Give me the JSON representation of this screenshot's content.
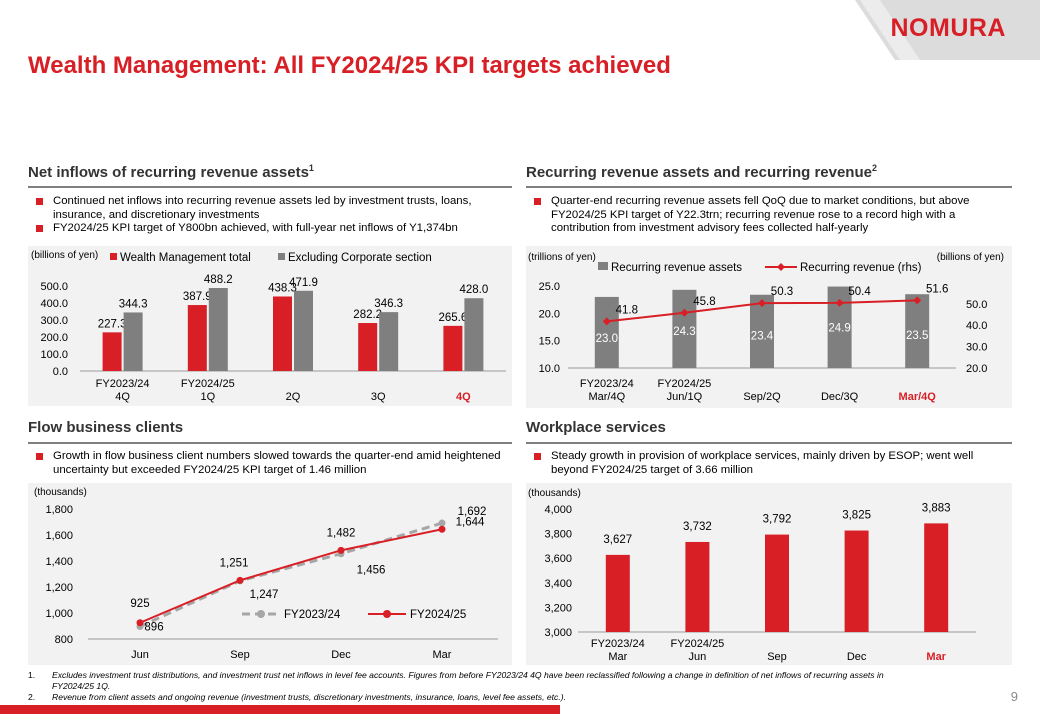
{
  "title": "Wealth Management: All FY2024/25 KPI targets achieved",
  "logo": "NOMURA",
  "page_number": "9",
  "colors": {
    "red": "#d81f26",
    "grey": "#7f7f7f",
    "panel": "#f2f2f2",
    "band": "#dcdcdc"
  },
  "sections": {
    "net_inflows": {
      "title": "Net inflows of recurring revenue assets",
      "sup": "1",
      "bullets": [
        "Continued net inflows into recurring revenue assets led by investment trusts, loans, insurance, and discretionary investments",
        "FY2024/25 KPI target of Y800bn achieved, with full-year net inflows of Y1,374bn"
      ]
    },
    "recurring": {
      "title": "Recurring revenue assets and recurring revenue",
      "sup": "2",
      "bullets": [
        "Quarter-end recurring revenue assets fell QoQ due to market conditions, but above FY2024/25 KPI target of Y22.3trn; recurring revenue rose to a record high with a contribution from investment advisory fees collected half-yearly"
      ]
    },
    "flow": {
      "title": "Flow business clients",
      "bullets": [
        "Growth in flow business client numbers slowed towards the quarter-end amid heightened uncertainty but exceeded FY2024/25 KPI target of 1.46 million"
      ]
    },
    "workplace": {
      "title": "Workplace services",
      "bullets": [
        "Steady growth in provision of workplace services, mainly driven by ESOP; went well beyond FY2024/25 target of 3.66 million"
      ]
    }
  },
  "footnotes": [
    {
      "num": "1.",
      "text": "Excludes investment trust distributions, and investment trust net inflows in level fee accounts. Figures from before FY2023/24 4Q have been reclassified following a change in definition of net inflows of recurring assets in FY2024/25 1Q."
    },
    {
      "num": "2.",
      "text": "Revenue from client assets and ongoing revenue (investment trusts, discretionary investments, insurance, loans, level fee assets, etc.)."
    }
  ],
  "chart_data": [
    {
      "id": "net_inflows",
      "type": "bar",
      "unit_label": "(billions of yen)",
      "categories": [
        [
          "FY2023/24",
          "4Q"
        ],
        [
          "FY2024/25",
          "1Q"
        ],
        [
          "2Q"
        ],
        [
          "3Q"
        ],
        [
          "4Q"
        ]
      ],
      "highlight_category": 4,
      "series": [
        {
          "name": "Wealth Management total",
          "color": "#d81f26",
          "values": [
            227.3,
            387.9,
            438.3,
            282.2,
            265.6
          ]
        },
        {
          "name": "Excluding Corporate section",
          "color": "#7f7f7f",
          "values": [
            344.3,
            488.2,
            471.9,
            346.3,
            428.0
          ]
        }
      ],
      "value_labels": {
        "Wealth Management total": [
          "227.3",
          "387.9",
          "438.3",
          "282.2",
          "265.6"
        ],
        "Excluding Corporate section": [
          "344.3",
          "488.2",
          "471.9",
          "346.3",
          "428.0"
        ]
      },
      "ylim": [
        0,
        500
      ],
      "yticks": [
        "500.0",
        "400.0",
        "300.0",
        "200.0",
        "100.0",
        "0.0"
      ]
    },
    {
      "id": "recurring",
      "type": "bar+line",
      "unit_label_left": "(trillions of yen)",
      "unit_label_right": "(billions of yen)",
      "categories": [
        [
          "FY2023/24",
          "Mar/4Q"
        ],
        [
          "FY2024/25",
          "Jun/1Q"
        ],
        [
          "Sep/2Q"
        ],
        [
          "Dec/3Q"
        ],
        [
          "Mar/4Q"
        ]
      ],
      "highlight_category": 4,
      "bars": {
        "name": "Recurring revenue assets",
        "color": "#7f7f7f",
        "values": [
          23.0,
          24.3,
          23.4,
          24.9,
          23.5
        ],
        "labels": [
          "23.0",
          "24.3",
          "23.4",
          "24.9",
          "23.5"
        ]
      },
      "line": {
        "name": "Recurring revenue (rhs)",
        "color": "#d81f26",
        "values": [
          41.8,
          45.8,
          50.3,
          50.4,
          51.6
        ],
        "labels": [
          "41.8",
          "45.8",
          "50.3",
          "50.4",
          "51.6"
        ]
      },
      "ylim_left": [
        10,
        25
      ],
      "yticks_left": [
        "25.0",
        "20.0",
        "15.0",
        "10.0"
      ],
      "ylim_right": [
        20,
        58.3
      ],
      "yticks_right": [
        "50.0",
        "40.0",
        "30.0",
        "20.0"
      ]
    },
    {
      "id": "flow",
      "type": "line",
      "unit_label": "(thousands)",
      "categories": [
        "Jun",
        "Sep",
        "Dec",
        "Mar"
      ],
      "series": [
        {
          "name": "FY2023/24",
          "color": "#a6a6a6",
          "dashed": true,
          "values": [
            896,
            1247,
            1456,
            1692
          ],
          "labels": [
            "896",
            "1,247",
            "1,456",
            "1,692"
          ]
        },
        {
          "name": "FY2024/25",
          "color": "#d81f26",
          "dashed": false,
          "values": [
            925,
            1251,
            1482,
            1644
          ],
          "labels": [
            "925",
            "1,251",
            "1,482",
            "1,644"
          ]
        }
      ],
      "ylim": [
        800,
        1800
      ],
      "yticks": [
        "1,800",
        "1,600",
        "1,400",
        "1,200",
        "1,000",
        "800"
      ]
    },
    {
      "id": "workplace",
      "type": "bar",
      "unit_label": "(thousands)",
      "categories": [
        [
          "FY2023/24",
          "Mar"
        ],
        [
          "FY2024/25",
          "Jun"
        ],
        [
          "Sep"
        ],
        [
          "Dec"
        ],
        [
          "Mar"
        ]
      ],
      "highlight_category": 4,
      "series": [
        {
          "name": "Workplace services",
          "color": "#d81f26",
          "values": [
            3627,
            3732,
            3792,
            3825,
            3883
          ],
          "labels": [
            "3,627",
            "3,732",
            "3,792",
            "3,825",
            "3,883"
          ]
        }
      ],
      "ylim": [
        3000,
        4000
      ],
      "yticks": [
        "4,000",
        "3,800",
        "3,600",
        "3,400",
        "3,200",
        "3,000"
      ]
    }
  ]
}
